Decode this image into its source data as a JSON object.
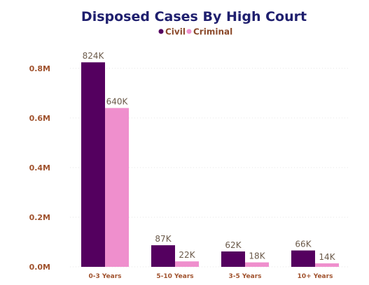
{
  "chart_data": {
    "type": "bar",
    "title": "Disposed Cases By High Court",
    "categories": [
      "0-3 Years",
      "5-10 Years",
      "3-5 Years",
      "10+ Years"
    ],
    "series": [
      {
        "name": "Civil",
        "color": "#54005f",
        "values": [
          824000,
          87000,
          62000,
          66000
        ],
        "labels": [
          "824K",
          "87K",
          "62K",
          "66K"
        ]
      },
      {
        "name": "Criminal",
        "color": "#ef8fcd",
        "values": [
          640000,
          22000,
          18000,
          14000
        ],
        "labels": [
          "640K",
          "22K",
          "18K",
          "14K"
        ]
      }
    ],
    "y_ticks": [
      {
        "value": 0,
        "label": "0.0M"
      },
      {
        "value": 200000,
        "label": "0.2M"
      },
      {
        "value": 400000,
        "label": "0.4M"
      },
      {
        "value": 600000,
        "label": "0.6M"
      },
      {
        "value": 800000,
        "label": "0.8M"
      }
    ],
    "ylim": [
      0,
      850000
    ],
    "grid": true,
    "legend_position": "top-center",
    "colors": {
      "title": "#1f1f6e",
      "legend_text": "#8b4a2b",
      "tick_text": "#a0522d",
      "data_label": "#6b5a4a",
      "grid": "#e6e6e6"
    }
  }
}
